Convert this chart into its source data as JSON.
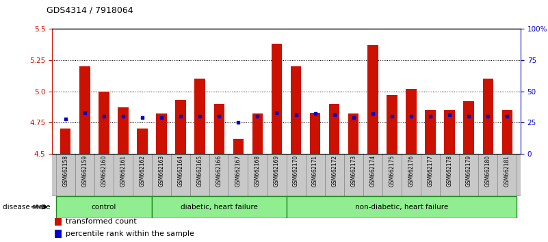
{
  "title": "GDS4314 / 7918064",
  "samples": [
    "GSM662158",
    "GSM662159",
    "GSM662160",
    "GSM662161",
    "GSM662162",
    "GSM662163",
    "GSM662164",
    "GSM662165",
    "GSM662166",
    "GSM662167",
    "GSM662168",
    "GSM662169",
    "GSM662170",
    "GSM662171",
    "GSM662172",
    "GSM662173",
    "GSM662174",
    "GSM662175",
    "GSM662176",
    "GSM662177",
    "GSM662178",
    "GSM662179",
    "GSM662180",
    "GSM662181"
  ],
  "bar_values": [
    4.7,
    5.2,
    5.0,
    4.87,
    4.7,
    4.82,
    4.93,
    5.1,
    4.9,
    4.62,
    4.82,
    5.38,
    5.2,
    4.83,
    4.9,
    4.82,
    5.37,
    4.97,
    5.02,
    4.85,
    4.85,
    4.92,
    5.1,
    4.85
  ],
  "blue_dot_values": [
    4.78,
    4.83,
    4.8,
    4.8,
    4.79,
    4.79,
    4.8,
    4.8,
    4.8,
    4.75,
    4.8,
    4.83,
    4.81,
    4.82,
    4.81,
    4.79,
    4.82,
    4.8,
    4.8,
    4.8,
    4.81,
    4.8,
    4.8,
    4.8
  ],
  "ylim": [
    4.5,
    5.5
  ],
  "yticks_left": [
    4.5,
    4.75,
    5.0,
    5.25,
    5.5
  ],
  "yticks_right": [
    0,
    25,
    50,
    75,
    100
  ],
  "bar_color": "#CC1100",
  "dot_color": "#0000CC",
  "group_defs": [
    [
      0,
      4,
      "control"
    ],
    [
      5,
      11,
      "diabetic, heart failure"
    ],
    [
      12,
      23,
      "non-diabetic, heart failure"
    ]
  ],
  "group_color": "#90EE90",
  "group_border_color": "#228B22",
  "tick_bg_color": "#C8C8C8",
  "legend_labels": [
    "transformed count",
    "percentile rank within the sample"
  ],
  "disease_state_label": "disease state",
  "gridline_values": [
    4.75,
    5.0,
    5.25
  ]
}
